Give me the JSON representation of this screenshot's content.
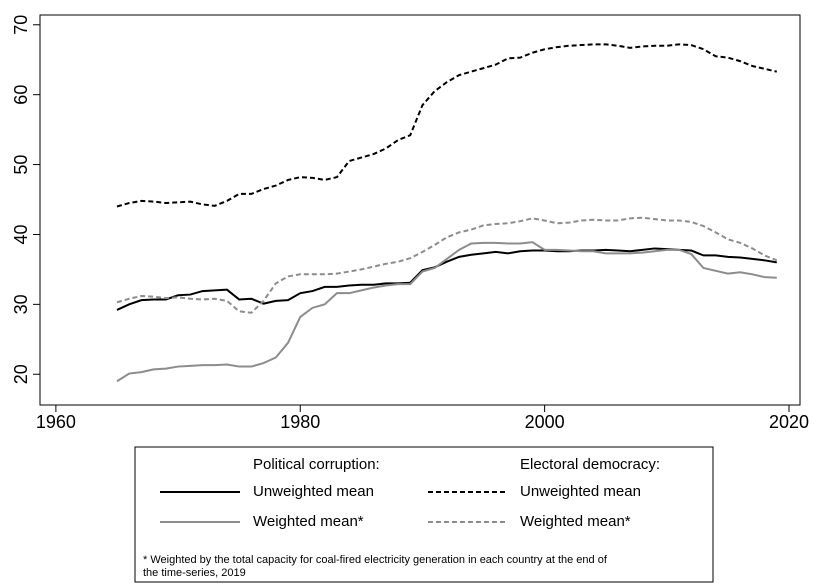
{
  "chart_data": {
    "type": "line",
    "x": [
      1965,
      1966,
      1967,
      1968,
      1969,
      1970,
      1971,
      1972,
      1973,
      1974,
      1975,
      1976,
      1977,
      1978,
      1979,
      1980,
      1981,
      1982,
      1983,
      1984,
      1985,
      1986,
      1987,
      1988,
      1989,
      1990,
      1991,
      1992,
      1993,
      1994,
      1995,
      1996,
      1997,
      1998,
      1999,
      2000,
      2001,
      2002,
      2003,
      2004,
      2005,
      2006,
      2007,
      2008,
      2009,
      2010,
      2011,
      2012,
      2013,
      2014,
      2015,
      2016,
      2017,
      2018,
      2019
    ],
    "legend_titles": [
      "Political corruption:",
      "Electoral democracy:"
    ],
    "series": [
      {
        "name": "Unweighted mean",
        "color": "#000000",
        "dash": false,
        "values": [
          29.2,
          30,
          30.6,
          30.7,
          30.7,
          31.3,
          31.4,
          31.9,
          32,
          32.1,
          30.7,
          30.8,
          30.1,
          30.5,
          30.6,
          31.6,
          31.9,
          32.5,
          32.5,
          32.7,
          32.8,
          32.8,
          33,
          33,
          33.1,
          34.9,
          35.3,
          36.1,
          36.8,
          37.1,
          37.3,
          37.5,
          37.3,
          37.6,
          37.7,
          37.7,
          37.6,
          37.6,
          37.7,
          37.7,
          37.8,
          37.7,
          37.6,
          37.8,
          38,
          37.9,
          37.8,
          37.7,
          37,
          37,
          36.8,
          36.7,
          36.5,
          36.3,
          36
        ]
      },
      {
        "name": "Weighted mean*",
        "color": "#8c8c8c",
        "dash": false,
        "values": [
          19,
          20.1,
          20.3,
          20.7,
          20.8,
          21.1,
          21.2,
          21.3,
          21.3,
          21.4,
          21.1,
          21.1,
          21.6,
          22.4,
          24.5,
          28.2,
          29.5,
          30,
          31.6,
          31.6,
          32,
          32.4,
          32.7,
          32.9,
          32.9,
          34.7,
          35.2,
          36.5,
          37.8,
          38.7,
          38.8,
          38.8,
          38.7,
          38.7,
          38.9,
          37.8,
          37.8,
          37.7,
          37.6,
          37.6,
          37.3,
          37.3,
          37.3,
          37.4,
          37.6,
          37.8,
          37.8,
          37.2,
          35.2,
          34.8,
          34.4,
          34.6,
          34.3,
          33.9,
          33.8
        ]
      },
      {
        "name": "Unweighted mean",
        "color": "#000000",
        "dash": true,
        "values": [
          44,
          44.5,
          44.8,
          44.7,
          44.5,
          44.6,
          44.7,
          44.3,
          44.1,
          44.8,
          45.8,
          45.8,
          46.5,
          47,
          47.8,
          48.2,
          48.1,
          47.8,
          48.2,
          50.5,
          51,
          51.5,
          52.3,
          53.5,
          54.2,
          58.5,
          60.5,
          61.8,
          62.8,
          63.3,
          63.8,
          64.3,
          65.2,
          65.3,
          66,
          66.5,
          66.8,
          67,
          67.1,
          67.2,
          67.2,
          67,
          66.7,
          66.9,
          67,
          67,
          67.2,
          67.1,
          66.5,
          65.5,
          65.3,
          64.8,
          64.1,
          63.7,
          63.3
        ]
      },
      {
        "name": "Weighted mean*",
        "color": "#8c8c8c",
        "dash": true,
        "values": [
          30.3,
          30.8,
          31.2,
          31.1,
          30.9,
          31,
          30.8,
          30.7,
          30.8,
          30.5,
          29,
          28.8,
          30.5,
          33,
          34,
          34.3,
          34.3,
          34.3,
          34.4,
          34.7,
          35,
          35.4,
          35.8,
          36.1,
          36.6,
          37.5,
          38.5,
          39.6,
          40.3,
          40.7,
          41.3,
          41.5,
          41.6,
          41.9,
          42.3,
          42,
          41.6,
          41.7,
          42,
          42.1,
          42,
          42,
          42.3,
          42.4,
          42.2,
          42,
          42,
          41.8,
          41.2,
          40.3,
          39.3,
          38.8,
          38,
          37,
          36.3
        ]
      }
    ],
    "xlim": [
      1958.7,
      2020.9
    ],
    "xticks": [
      1960,
      1980,
      2000,
      2020
    ],
    "ylim": [
      15.6,
      71.4
    ],
    "yticks": [
      20,
      30,
      40,
      50,
      60,
      70
    ],
    "note_lines": [
      "* Weighted by the total capacity for coal-fired electricity generation in each country at the end of",
      "the time-series, 2019"
    ]
  }
}
